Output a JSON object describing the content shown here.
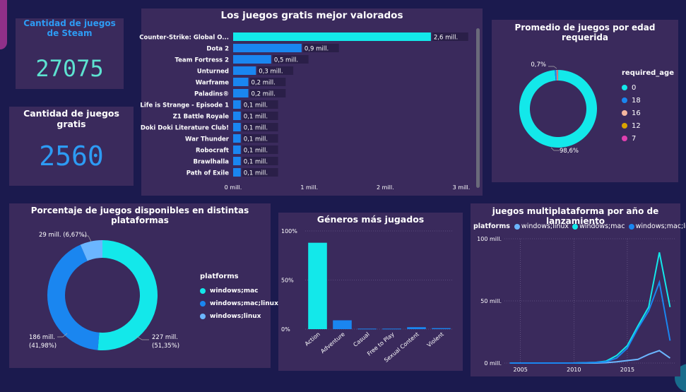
{
  "kpis": {
    "steam_games_title": "Cantidad de juegos de Steam",
    "steam_games_value": "27075",
    "free_games_title": "Cantidad de juegos gratis",
    "free_games_value": "2560"
  },
  "colors": {
    "cyan": "#13e8ea",
    "blue": "#1a86f0",
    "lightblue": "#6bb6ff",
    "panel": "#3a2a5c",
    "background": "#1b1a4e",
    "kpi_teal": "#5de2d0",
    "kpi_blue": "#2d9bf4"
  },
  "chart_data": [
    {
      "id": "top_free",
      "type": "bar",
      "orientation": "horizontal",
      "title": "Los juegos gratis mejor valorados",
      "categories": [
        "Counter-Strike: Global O...",
        "Dota 2",
        "Team Fortress 2",
        "Unturned",
        "Warframe",
        "Paladins®",
        "Life is Strange - Episode 1",
        "Z1 Battle Royale",
        "Doki Doki Literature Club!",
        "War Thunder",
        "Robocraft",
        "Brawlhalla",
        "Path of Exile"
      ],
      "values": [
        2.6,
        0.9,
        0.5,
        0.3,
        0.2,
        0.2,
        0.1,
        0.1,
        0.1,
        0.1,
        0.1,
        0.1,
        0.1
      ],
      "data_labels": [
        "2,6 mill.",
        "0,9 mill.",
        "0,5 mill.",
        "0,3 mill.",
        "0,2 mill.",
        "0,2 mill.",
        "0,1 mill.",
        "0,1 mill.",
        "0,1 mill.",
        "0,1 mill.",
        "0,1 mill.",
        "0,1 mill.",
        "0,1 mill."
      ],
      "xlim": [
        0,
        3
      ],
      "x_ticks": [
        "0 mill.",
        "1 mill.",
        "2 mill.",
        "3 mill."
      ]
    },
    {
      "id": "age_donut",
      "type": "pie",
      "title": "Promedio de juegos por edad requerida",
      "legend_title": "required_age",
      "slices": [
        {
          "label": "0",
          "value": 98.6,
          "color": "#13e8ea"
        },
        {
          "label": "18",
          "value": 0.7,
          "color": "#1a86f0"
        },
        {
          "label": "16",
          "value": 0.3,
          "color": "#f5b7a0"
        },
        {
          "label": "12",
          "value": 0.2,
          "color": "#d9a400"
        },
        {
          "label": "7",
          "value": 0.2,
          "color": "#e040b0"
        }
      ],
      "data_labels": [
        "0,7%",
        "98,6%"
      ]
    },
    {
      "id": "platform_donut",
      "type": "pie",
      "title": "Porcentaje de juegos disponibles en distintas plataformas",
      "legend_title": "platforms",
      "slices": [
        {
          "label": "windows;mac",
          "value": 227,
          "color": "#13e8ea"
        },
        {
          "label": "windows;mac;linux",
          "value": 186,
          "color": "#1a86f0"
        },
        {
          "label": "windows;linux",
          "value": 29,
          "color": "#6bb6ff"
        }
      ],
      "data_labels": [
        {
          "value": "227 mill.",
          "pct": "(51,35%)"
        },
        {
          "value": "186 mill.",
          "pct": "(41,98%)"
        },
        {
          "value": "29 mill. (6,67%)",
          "pct": ""
        }
      ]
    },
    {
      "id": "genres",
      "type": "bar",
      "title": "Géneros más jugados",
      "categories": [
        "Action",
        "Adventure",
        "Casual",
        "Free to Play",
        "Sexual Content",
        "Violent"
      ],
      "values": [
        88,
        9,
        0.5,
        0.5,
        2,
        1
      ],
      "ylim": [
        0,
        100
      ],
      "y_ticks": [
        "0%",
        "50%",
        "100%"
      ]
    },
    {
      "id": "multiplatform",
      "type": "line",
      "title": "juegos multiplataforma por año de lanzamiento",
      "legend_title": "platforms",
      "x": [
        2004,
        2006,
        2008,
        2010,
        2012,
        2013,
        2014,
        2015,
        2016,
        2017,
        2018,
        2019
      ],
      "series": [
        {
          "name": "windows;linux",
          "color": "#6bb6ff",
          "values": [
            0,
            0,
            0,
            0,
            0,
            0.3,
            1,
            2,
            3,
            7,
            10,
            4
          ]
        },
        {
          "name": "windows;mac",
          "color": "#13e8ea",
          "values": [
            0,
            0,
            0,
            0,
            0.5,
            1.5,
            6,
            14,
            30,
            45,
            89,
            45
          ]
        },
        {
          "name": "windows;mac;linux",
          "color": "#1a86f0",
          "values": [
            0,
            0,
            0,
            0,
            0.5,
            1,
            4,
            12,
            28,
            42,
            65,
            18
          ]
        }
      ],
      "xlim": [
        2003.5,
        2019.5
      ],
      "ylim": [
        0,
        100
      ],
      "x_ticks": [
        "2005",
        "2010",
        "2015"
      ],
      "y_ticks": [
        "0 mill.",
        "50 mill.",
        "100 mill."
      ],
      "legend_extra": "windows;mac;lin..."
    }
  ]
}
